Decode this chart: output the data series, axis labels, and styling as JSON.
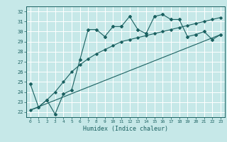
{
  "xlabel": "Humidex (Indice chaleur)",
  "xlim": [
    -0.5,
    23.5
  ],
  "ylim": [
    21.5,
    32.5
  ],
  "yticks": [
    22,
    23,
    24,
    25,
    26,
    27,
    28,
    29,
    30,
    31,
    32
  ],
  "xticks": [
    0,
    1,
    2,
    3,
    4,
    5,
    6,
    7,
    8,
    9,
    10,
    11,
    12,
    13,
    14,
    15,
    16,
    17,
    18,
    19,
    20,
    21,
    22,
    23
  ],
  "bg_color": "#c6e8e8",
  "line_color": "#1a6060",
  "line1_x": [
    0,
    1,
    2,
    3,
    4,
    5,
    6,
    7,
    8,
    9,
    10,
    11,
    12,
    13,
    14,
    15,
    16,
    17,
    18,
    19,
    20,
    21,
    22,
    23
  ],
  "line1_y": [
    24.8,
    22.5,
    23.2,
    21.8,
    23.8,
    24.2,
    27.2,
    30.2,
    30.2,
    29.5,
    30.5,
    30.5,
    31.5,
    30.2,
    29.8,
    31.5,
    31.7,
    31.2,
    31.2,
    29.5,
    29.7,
    30.0,
    29.2,
    29.7
  ],
  "line2_x": [
    0,
    1,
    2,
    3,
    4,
    5,
    6,
    7,
    8,
    9,
    10,
    11,
    12,
    13,
    14,
    15,
    16,
    17,
    18,
    19,
    20,
    21,
    22,
    23
  ],
  "line2_y": [
    22.2,
    22.5,
    23.2,
    24.0,
    25.0,
    26.0,
    26.7,
    27.3,
    27.8,
    28.2,
    28.6,
    29.0,
    29.2,
    29.4,
    29.6,
    29.8,
    30.0,
    30.2,
    30.4,
    30.6,
    30.8,
    31.0,
    31.2,
    31.4
  ],
  "line3_x": [
    0,
    23
  ],
  "line3_y": [
    22.2,
    29.7
  ]
}
